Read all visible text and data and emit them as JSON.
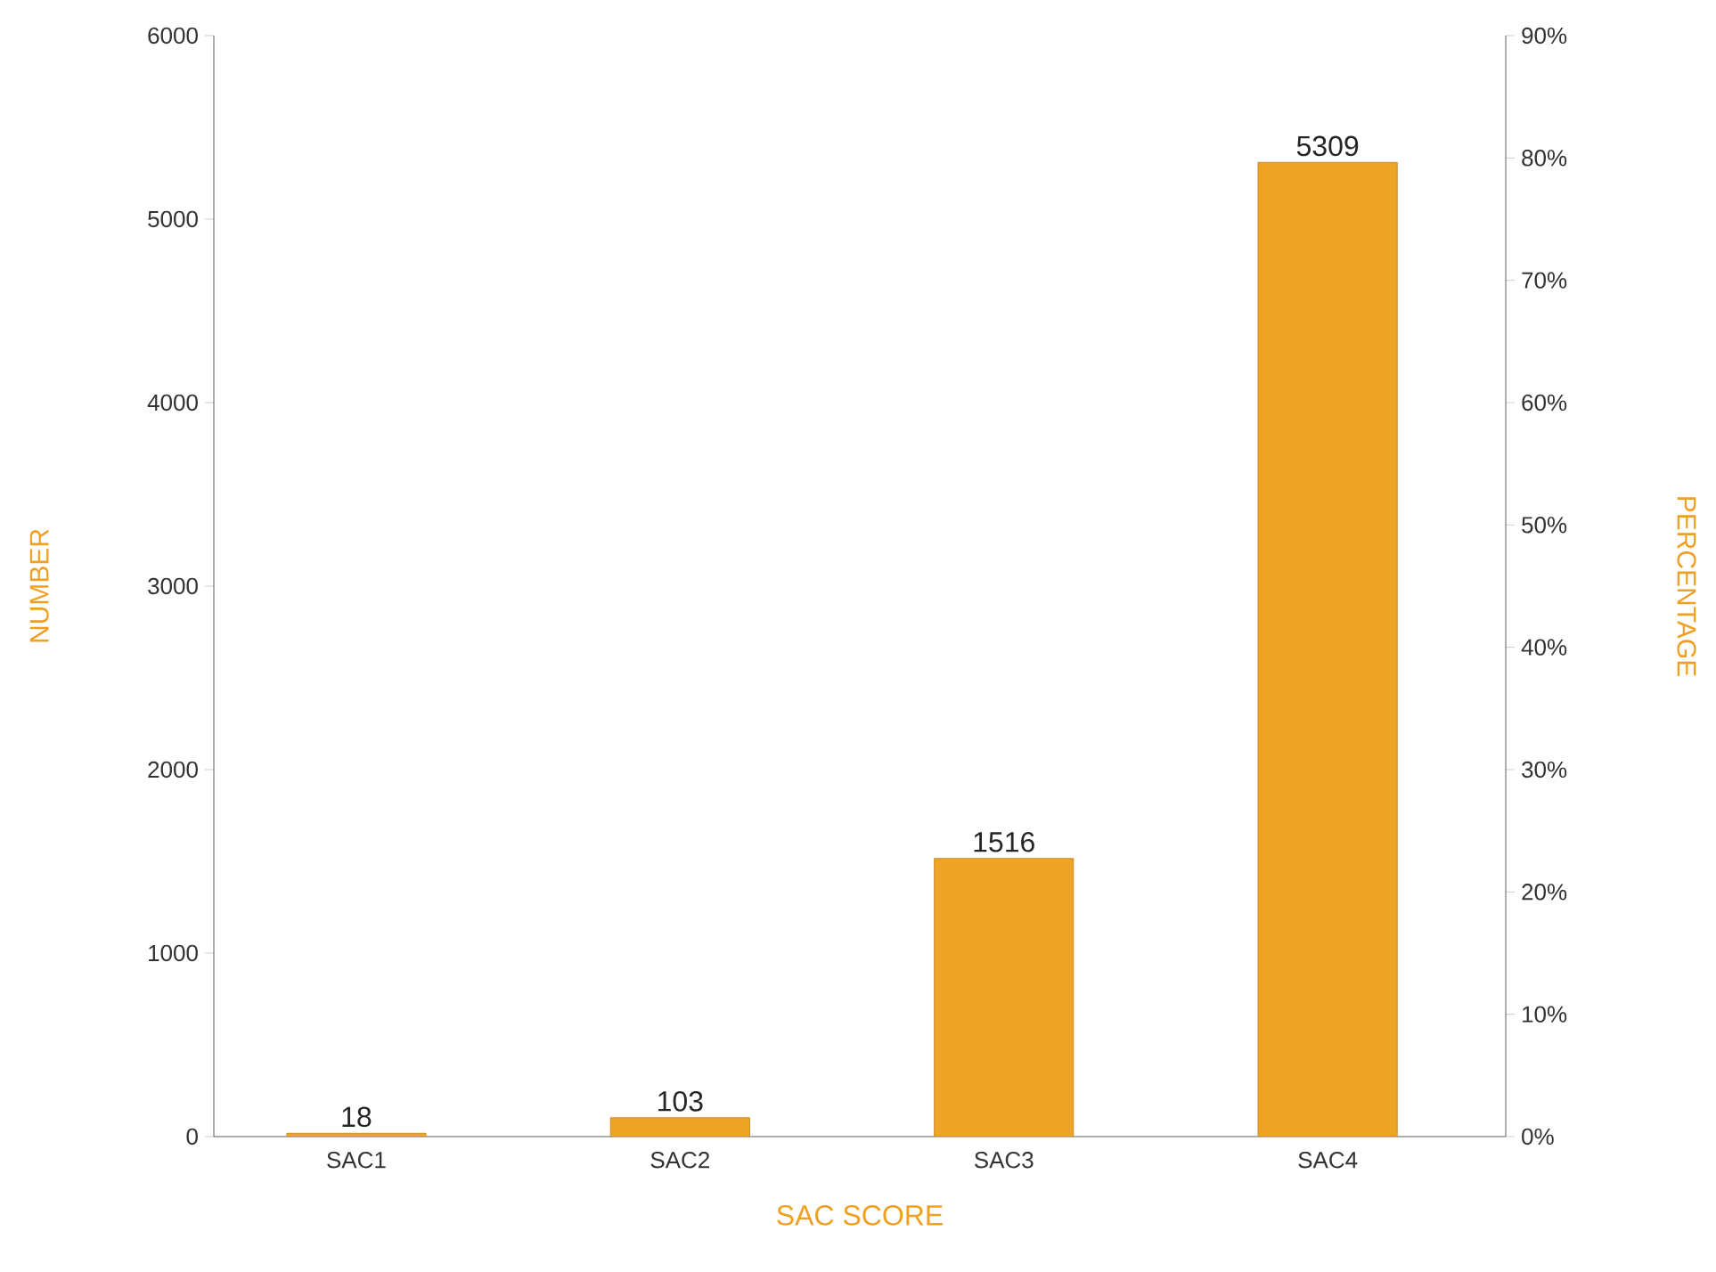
{
  "chart_data": {
    "type": "bar",
    "categories": [
      "SAC1",
      "SAC2",
      "SAC3",
      "SAC4"
    ],
    "values": [
      18,
      103,
      1516,
      5309
    ],
    "color": "#eea425",
    "data_labels": true,
    "xlabel": "SAC SCORE",
    "ylabel": "NUMBER",
    "y2label": "PERCENTAGE",
    "ylim": [
      0,
      6000
    ],
    "yticks": [
      0,
      1000,
      2000,
      3000,
      4000,
      5000,
      6000
    ],
    "y2lim": [
      0,
      90
    ],
    "y2ticks": [
      {
        "value": 0,
        "label": "0%"
      },
      {
        "value": 10,
        "label": "10%"
      },
      {
        "value": 20,
        "label": "20%"
      },
      {
        "value": 30,
        "label": "30%"
      },
      {
        "value": 40,
        "label": "40%"
      },
      {
        "value": 50,
        "label": "50%"
      },
      {
        "value": 60,
        "label": "60%"
      },
      {
        "value": 70,
        "label": "70%"
      },
      {
        "value": 80,
        "label": "80%"
      },
      {
        "value": 90,
        "label": "90%"
      }
    ]
  }
}
